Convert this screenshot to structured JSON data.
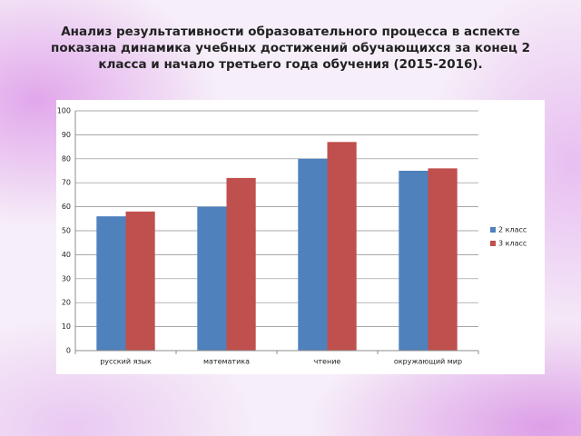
{
  "chart_data": {
    "type": "bar",
    "title": "Анализ результативности образовательного процесса в аспекте показана динамика учебных достижений обучающихся за конец 2 класса и начало третьего года обучения (2015-2016).",
    "categories": [
      "русский язык",
      "математика",
      "чтение",
      "окружающий мир"
    ],
    "series": [
      {
        "name": "2 класс",
        "color": "#4f81bd",
        "values": [
          56,
          60,
          80,
          75
        ]
      },
      {
        "name": "3 класс",
        "color": "#c0504d",
        "values": [
          58,
          72,
          87,
          76
        ]
      }
    ],
    "ylim": [
      0,
      100
    ],
    "yticks": [
      0,
      10,
      20,
      30,
      40,
      50,
      60,
      70,
      80,
      90,
      100
    ],
    "grid": true,
    "legend": "right"
  }
}
